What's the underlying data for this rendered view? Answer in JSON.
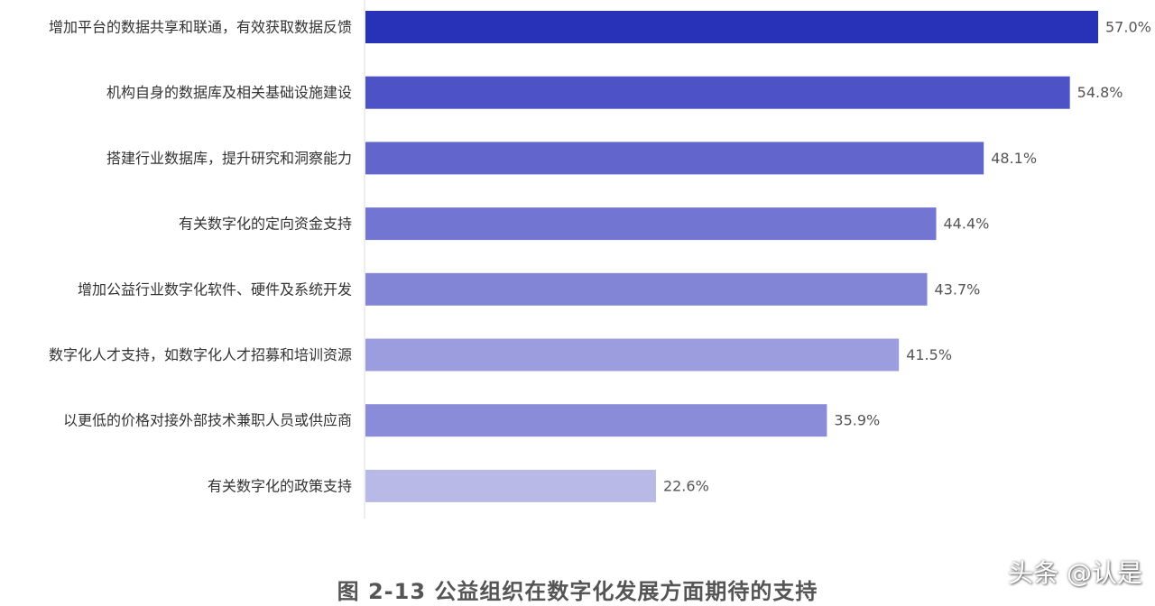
{
  "chart_data": {
    "type": "bar",
    "orientation": "horizontal",
    "categories": [
      "增加平台的数据共享和联通，有效获取数据反馈",
      "机构自身的数据库及相关基础设施建设",
      "搭建行业数据库，提升研究和洞察能力",
      "有关数字化的定向资金支持",
      "增加公益行业数字化软件、硬件及系统开发",
      "数字化人才支持，如数字化人才招募和培训资源",
      "以更低的价格对接外部技术兼职人员或供应商",
      "有关数字化的政策支持"
    ],
    "values": [
      57.0,
      54.8,
      48.1,
      44.4,
      43.7,
      41.5,
      35.9,
      22.6
    ],
    "value_labels": [
      "57.0%",
      "54.8%",
      "48.1%",
      "44.4%",
      "43.7%",
      "41.5%",
      "35.9%",
      "22.6%"
    ],
    "colors": [
      "#2832b8",
      "#4d52c6",
      "#6265cc",
      "#7275d1",
      "#8284d6",
      "#9c9ddf",
      "#8a8cd9",
      "#b9b9e8"
    ],
    "axis_color": "#dddddd",
    "xlim": [
      0,
      57
    ],
    "grid": false,
    "legend": "none",
    "title": "图 2-13 公益组织在数字化发展方面期待的支持"
  },
  "watermark": "头条 @认是"
}
